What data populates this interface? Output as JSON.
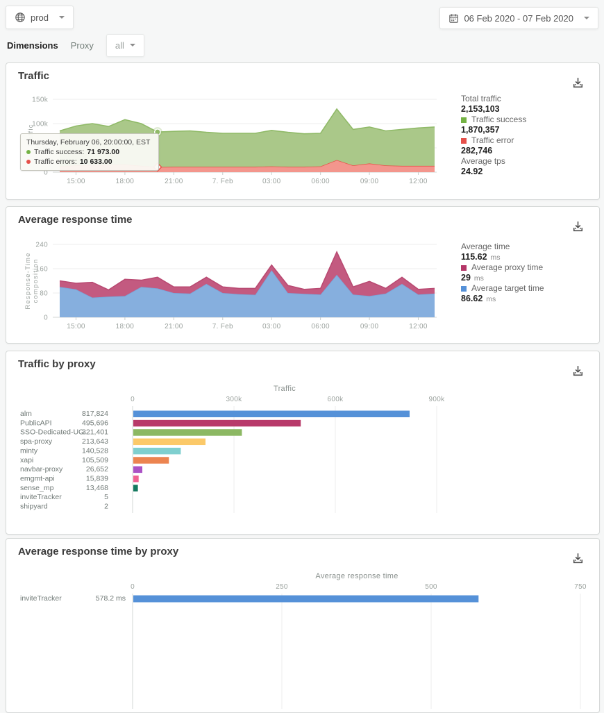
{
  "topbar": {
    "env_label": "prod",
    "date_range": "06 Feb 2020 - 07 Feb 2020"
  },
  "filters": {
    "dimensions_label": "Dimensions",
    "dimension_name": "Proxy",
    "dimension_value": "all"
  },
  "icons": {
    "env": "globe-icon",
    "date": "calendar-icon",
    "download": "download-icon",
    "dropdown": "chevron-down-icon"
  },
  "colors": {
    "success": "#74b244",
    "error": "#e5504a",
    "proxy_time": "#b43667",
    "target_time": "#5591d8",
    "bar_blue": "#5591d8"
  },
  "cards": {
    "traffic": {
      "title": "Traffic",
      "summary": {
        "total_label": "Total traffic",
        "total_value": "2,153,103",
        "success_label": "Traffic success",
        "success_value": "1,870,357",
        "error_label": "Traffic error",
        "error_value": "282,746",
        "tps_label": "Average tps",
        "tps_value": "24.92"
      },
      "tooltip": {
        "title": "Thursday, February 06, 20:00:00, EST",
        "success_label": "Traffic success:",
        "success_value": "71 973.00",
        "errors_label": "Traffic errors:",
        "errors_value": "10 633.00"
      }
    },
    "response": {
      "title": "Average response time",
      "summary": {
        "avg_label": "Average time",
        "avg_value": "115.62",
        "avg_unit": "ms",
        "proxy_label": "Average proxy time",
        "proxy_value": "29",
        "proxy_unit": "ms",
        "target_label": "Average target time",
        "target_value": "86.62",
        "target_unit": "ms"
      }
    },
    "traffic_by_proxy": {
      "title": "Traffic by proxy"
    },
    "response_by_proxy": {
      "title": "Average response time by proxy"
    }
  },
  "chart_data": [
    {
      "id": "traffic",
      "type": "area",
      "stacked": true,
      "title": "Traffic",
      "ylabel_lines": [
        "Traffic"
      ],
      "ylim": [
        0,
        150000
      ],
      "y_ticks": [
        {
          "v": 0,
          "label": "0"
        },
        {
          "v": 50000,
          "label": "50k"
        },
        {
          "v": 100000,
          "label": "100k"
        },
        {
          "v": 150000,
          "label": "150k"
        }
      ],
      "x_tick_labels": [
        "15:00",
        "18:00",
        "21:00",
        "7. Feb",
        "03:00",
        "06:00",
        "09:00",
        "12:00"
      ],
      "x_tick_index": [
        1,
        4,
        7,
        10,
        13,
        16,
        19,
        22
      ],
      "x_start": "Feb 6 14:00",
      "x_end": "Feb 7 13:00",
      "x_step": "1h",
      "series": [
        {
          "name": "Traffic errors",
          "fill": "#f3968d",
          "line": "#e8544a",
          "values": [
            12000,
            14000,
            15000,
            15000,
            16000,
            13000,
            10633,
            11000,
            11000,
            11000,
            11000,
            11000,
            11000,
            12000,
            11000,
            11000,
            12000,
            25000,
            14000,
            18000,
            14000,
            13000,
            13000,
            13000
          ]
        },
        {
          "name": "Traffic success",
          "fill": "#aac889",
          "line": "#90ba68",
          "values": [
            73000,
            81000,
            85000,
            79000,
            92000,
            87000,
            71973,
            73000,
            74000,
            71000,
            69000,
            69000,
            69000,
            74000,
            71000,
            68000,
            68000,
            105000,
            74000,
            75000,
            71000,
            75000,
            78000,
            80000
          ]
        }
      ],
      "hover_marker_index": 6,
      "grid": true,
      "legend_position": "right"
    },
    {
      "id": "response_time",
      "type": "area",
      "stacked": true,
      "title": "Average response time",
      "ylabel_lines": [
        "Response-Time",
        "composition"
      ],
      "ylim": [
        0,
        240
      ],
      "y_ticks": [
        {
          "v": 0,
          "label": "0"
        },
        {
          "v": 80,
          "label": "80"
        },
        {
          "v": 160,
          "label": "160"
        },
        {
          "v": 240,
          "label": "240"
        }
      ],
      "x_tick_labels": [
        "15:00",
        "18:00",
        "21:00",
        "7. Feb",
        "03:00",
        "06:00",
        "09:00",
        "12:00"
      ],
      "x_tick_index": [
        1,
        4,
        7,
        10,
        13,
        16,
        19,
        22
      ],
      "x_start": "Feb 6 14:00",
      "x_end": "Feb 7 13:00",
      "x_step": "1h",
      "series": [
        {
          "name": "Average target time",
          "fill": "#86afde",
          "line": "#78a5da",
          "values": [
            100,
            92,
            65,
            68,
            70,
            100,
            95,
            80,
            78,
            110,
            80,
            76,
            74,
            155,
            80,
            77,
            75,
            140,
            75,
            70,
            78,
            110,
            75,
            78
          ]
        },
        {
          "name": "Average proxy time",
          "fill": "#c35a80",
          "line": "#b94a72",
          "values": [
            20,
            20,
            50,
            22,
            55,
            22,
            37,
            20,
            22,
            22,
            20,
            19,
            21,
            17,
            25,
            15,
            20,
            75,
            25,
            48,
            17,
            22,
            17,
            17
          ]
        }
      ],
      "grid": true,
      "legend_position": "right"
    },
    {
      "id": "traffic_by_proxy",
      "type": "bar",
      "orientation": "horizontal",
      "axis_title": "Traffic",
      "xlim": [
        0,
        900000
      ],
      "x_ticks": [
        {
          "v": 0,
          "label": "0"
        },
        {
          "v": 300000,
          "label": "300k"
        },
        {
          "v": 600000,
          "label": "600k"
        },
        {
          "v": 900000,
          "label": "900k"
        }
      ],
      "rows": [
        {
          "label": "alm",
          "value": 817824,
          "display": "817,824",
          "color": "#5591d8"
        },
        {
          "label": "PublicAPI",
          "value": 495696,
          "display": "495,696",
          "color": "#b83a6a"
        },
        {
          "label": "SSO-Dedicated-UG...",
          "value": 321401,
          "display": "321,401",
          "color": "#8cb863"
        },
        {
          "label": "spa-proxy",
          "value": 213643,
          "display": "213,643",
          "color": "#fbc969"
        },
        {
          "label": "minty",
          "value": 140528,
          "display": "140,528",
          "color": "#7fcfcf"
        },
        {
          "label": "xapi",
          "value": 105509,
          "display": "105,509",
          "color": "#ec8450"
        },
        {
          "label": "navbar-proxy",
          "value": 26652,
          "display": "26,652",
          "color": "#ab52c5"
        },
        {
          "label": "emgmt-api",
          "value": 15839,
          "display": "15,839",
          "color": "#f06292"
        },
        {
          "label": "sense_mp",
          "value": 13468,
          "display": "13,468",
          "color": "#13795f"
        },
        {
          "label": "inviteTracker",
          "value": 5,
          "display": "5",
          "color": "#5591d8"
        },
        {
          "label": "shipyard",
          "value": 2,
          "display": "2",
          "color": "#5591d8"
        }
      ]
    },
    {
      "id": "response_by_proxy",
      "type": "bar",
      "orientation": "horizontal",
      "axis_title": "Average response time",
      "xlim": [
        0,
        750
      ],
      "x_ticks": [
        {
          "v": 0,
          "label": "0"
        },
        {
          "v": 250,
          "label": "250"
        },
        {
          "v": 500,
          "label": "500"
        },
        {
          "v": 750,
          "label": "750"
        }
      ],
      "rows": [
        {
          "label": "inviteTracker",
          "value": 578.2,
          "display": "578.2 ms",
          "color": "#5591d8"
        }
      ]
    }
  ]
}
